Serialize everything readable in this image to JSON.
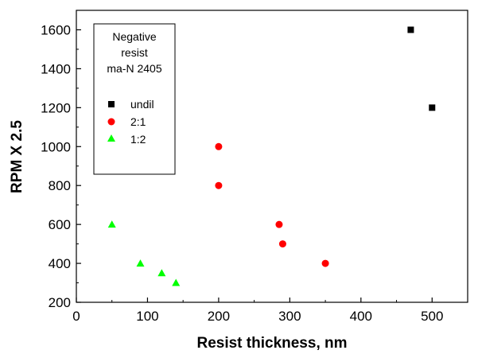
{
  "chart_data": {
    "type": "scatter",
    "title": "",
    "xlabel": "Resist thickness, nm",
    "ylabel": "RPM X 2.5",
    "xlim": [
      0,
      550
    ],
    "ylim": [
      200,
      1700
    ],
    "xticks": [
      0,
      100,
      200,
      300,
      400,
      500
    ],
    "yticks": [
      200,
      400,
      600,
      800,
      1000,
      1200,
      1400,
      1600
    ],
    "grid": false,
    "legend": {
      "placement": "top-left",
      "title_lines": [
        "Negative",
        "resist",
        "ma-N 2405"
      ]
    },
    "series": [
      {
        "name": "undil",
        "marker": "square",
        "color": "#000000",
        "points": [
          {
            "x": 470,
            "y": 1600
          },
          {
            "x": 500,
            "y": 1200
          }
        ]
      },
      {
        "name": "2:1",
        "marker": "circle",
        "color": "#ff0000",
        "points": [
          {
            "x": 200,
            "y": 1000
          },
          {
            "x": 200,
            "y": 800
          },
          {
            "x": 285,
            "y": 600
          },
          {
            "x": 290,
            "y": 500
          },
          {
            "x": 350,
            "y": 400
          }
        ]
      },
      {
        "name": "1:2",
        "marker": "triangle",
        "color": "#00ff00",
        "points": [
          {
            "x": 50,
            "y": 600
          },
          {
            "x": 90,
            "y": 400
          },
          {
            "x": 120,
            "y": 350
          },
          {
            "x": 140,
            "y": 300
          }
        ]
      }
    ]
  }
}
